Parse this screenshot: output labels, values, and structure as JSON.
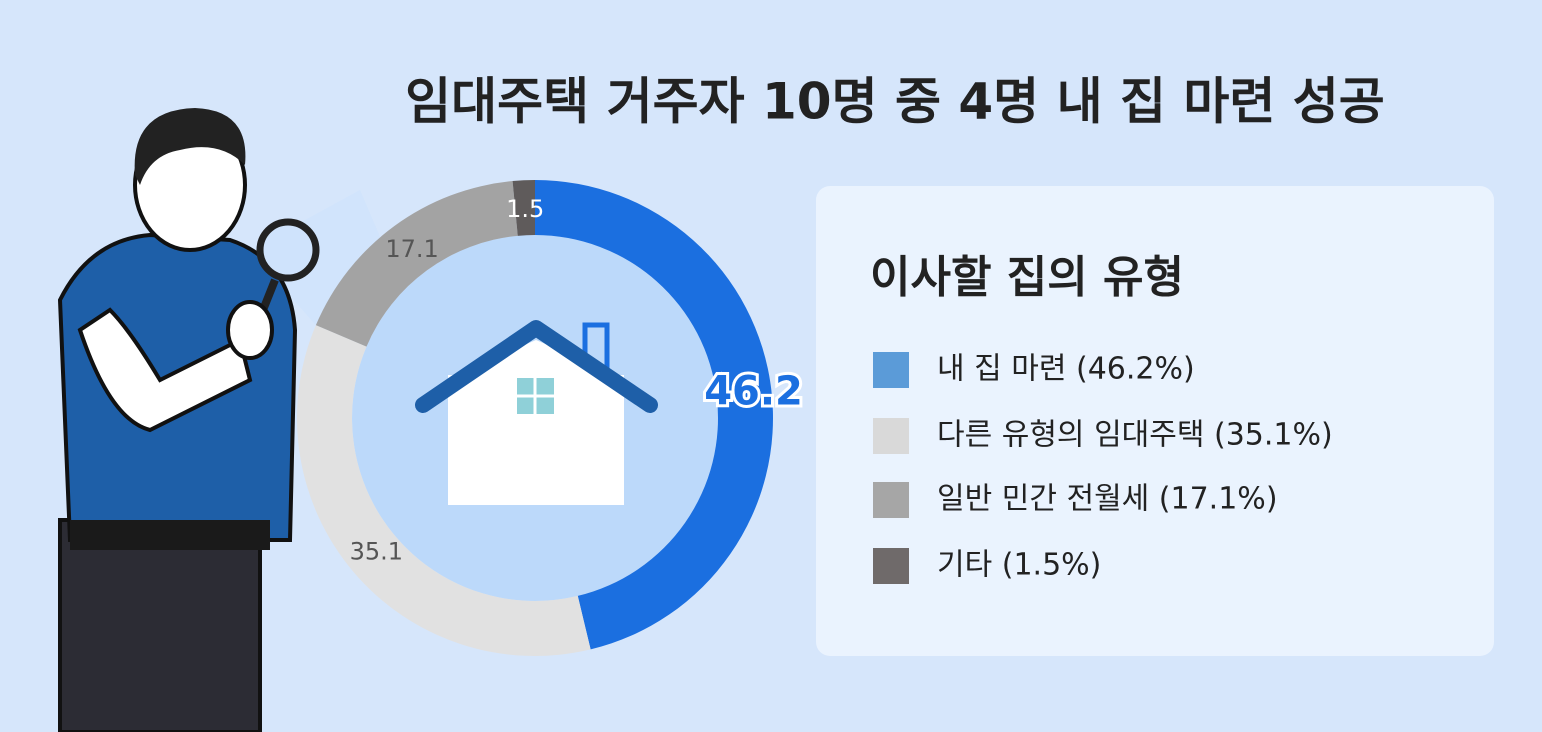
{
  "chart_data": {
    "type": "pie",
    "title": "임대주택 거주자 10명 중 4명 내 집 마련 성공",
    "legend_title": "이사할 집의 유형",
    "categories": [
      "내 집 마련 (46.2%)",
      "다른 유형의 임대주택 (35.1%)",
      "일반 민간 전월세 (17.1%)",
      "기타 (1.5%)"
    ],
    "values": [
      46.2,
      35.1,
      17.1,
      1.5
    ],
    "colors": [
      "#1b6fe0",
      "#e1e1e1",
      "#a3a3a3",
      "#5f5b5b"
    ],
    "legend_colors": [
      "#5b9bd8",
      "#d9d9d9",
      "#a6a6a6",
      "#6f6a6a"
    ]
  }
}
